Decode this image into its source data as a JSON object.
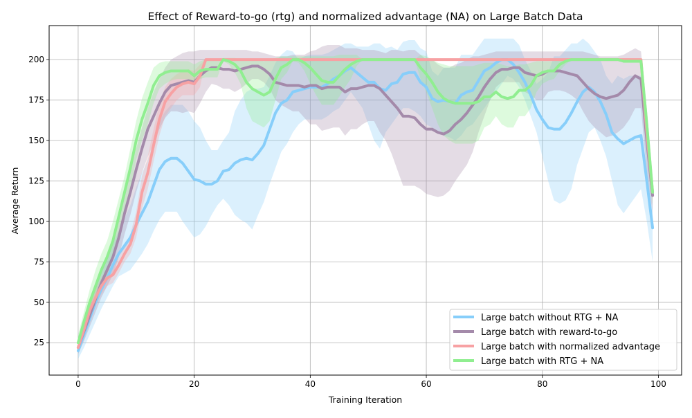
{
  "chart_data": {
    "type": "line",
    "title": "Effect of Reward-to-go (rtg) and normalized advantage (NA) on Large Batch Data",
    "xlabel": "Training Iteration",
    "ylabel": "Average Return",
    "xlim": [
      -5,
      104
    ],
    "ylim": [
      5,
      221
    ],
    "xticks": [
      0,
      20,
      40,
      60,
      80,
      100
    ],
    "yticks": [
      25,
      50,
      75,
      100,
      125,
      150,
      175,
      200
    ],
    "grid": true,
    "legend_position": "lower-right",
    "x_start": 0,
    "series": [
      {
        "name": "Large batch without RTG + NA",
        "color": "#87cefa",
        "values": [
          20,
          30,
          40,
          50,
          58,
          65,
          73,
          80,
          85,
          90,
          98,
          105,
          112,
          122,
          132,
          137,
          139,
          139,
          136,
          131,
          126,
          125,
          123,
          123,
          125,
          131,
          132,
          136,
          138,
          139,
          138,
          142,
          147,
          157,
          167,
          173,
          175,
          180,
          181,
          182,
          183,
          183,
          183,
          185,
          188,
          190,
          193,
          195,
          192,
          189,
          186,
          186,
          182,
          181,
          185,
          186,
          191,
          192,
          192,
          186,
          183,
          176,
          174,
          175,
          174,
          173,
          178,
          180,
          181,
          187,
          193,
          195,
          198,
          200,
          200,
          197,
          192,
          186,
          178,
          169,
          163,
          158,
          157,
          157,
          161,
          167,
          174,
          180,
          183,
          180,
          174,
          166,
          155,
          151,
          148,
          150,
          152,
          153,
          125,
          96
        ]
      },
      {
        "name": "Large batch with reward-to-go",
        "color": "#a48aaa",
        "values": [
          22,
          32,
          42,
          52,
          62,
          70,
          78,
          90,
          105,
          118,
          132,
          145,
          157,
          165,
          173,
          180,
          184,
          185,
          186,
          187,
          186,
          190,
          193,
          195,
          195,
          194,
          194,
          193,
          194,
          195,
          196,
          196,
          194,
          191,
          186,
          185,
          184,
          184,
          184,
          183,
          184,
          184,
          182,
          183,
          183,
          183,
          180,
          182,
          182,
          183,
          184,
          184,
          182,
          178,
          174,
          170,
          165,
          165,
          164,
          160,
          157,
          157,
          155,
          154,
          156,
          160,
          163,
          167,
          172,
          177,
          183,
          188,
          192,
          194,
          194,
          195,
          195,
          192,
          191,
          190,
          191,
          193,
          193,
          193,
          192,
          191,
          190,
          186,
          182,
          179,
          177,
          176,
          177,
          178,
          181,
          186,
          190,
          188,
          150,
          116
        ]
      },
      {
        "name": "Large batch with normalized advantage",
        "color": "#f7a1a3",
        "values": [
          22,
          33,
          45,
          53,
          60,
          65,
          67,
          73,
          80,
          86,
          98,
          118,
          130,
          147,
          163,
          174,
          179,
          183,
          185,
          186,
          185,
          190,
          200,
          200,
          200,
          200,
          200,
          200,
          200,
          200,
          200,
          200,
          200,
          200,
          200,
          200,
          200,
          200,
          200,
          200,
          200,
          200,
          200,
          200,
          200,
          200,
          200,
          200,
          200,
          200,
          200,
          200,
          200,
          200,
          200,
          200,
          200,
          200,
          200,
          200,
          200,
          200,
          200,
          200,
          200,
          200,
          200,
          200,
          200,
          200,
          200,
          200,
          200,
          200,
          200,
          200,
          200,
          200,
          200,
          200,
          200,
          200,
          200,
          200,
          200,
          200,
          200,
          200,
          200,
          200,
          200,
          200,
          200,
          200,
          200,
          200,
          200,
          200,
          155,
          118
        ]
      },
      {
        "name": "Large batch with RTG + NA",
        "color": "#90ee90",
        "values": [
          25,
          38,
          50,
          60,
          70,
          78,
          88,
          103,
          118,
          133,
          150,
          163,
          173,
          184,
          190,
          192,
          193,
          193,
          193,
          193,
          190,
          193,
          194,
          194,
          194,
          200,
          199,
          197,
          193,
          186,
          182,
          180,
          178,
          180,
          188,
          195,
          197,
          200,
          200,
          198,
          195,
          191,
          187,
          186,
          186,
          190,
          194,
          197,
          199,
          200,
          200,
          200,
          200,
          200,
          200,
          200,
          200,
          200,
          200,
          195,
          191,
          186,
          180,
          176,
          174,
          173,
          173,
          173,
          173,
          174,
          177,
          177,
          180,
          177,
          176,
          177,
          181,
          181,
          184,
          190,
          192,
          193,
          193,
          197,
          199,
          200,
          200,
          200,
          200,
          200,
          200,
          200,
          200,
          200,
          199,
          199,
          199,
          199,
          160,
          118
        ]
      }
    ],
    "bands": [
      {
        "series": "Large batch without RTG + NA",
        "color": "#87cefa",
        "lower": [
          15,
          22,
          30,
          38,
          46,
          53,
          60,
          66,
          68,
          70,
          75,
          80,
          86,
          94,
          101,
          106,
          106,
          106,
          100,
          95,
          90,
          92,
          97,
          104,
          110,
          114,
          110,
          104,
          101,
          99,
          95,
          104,
          112,
          123,
          133,
          143,
          148,
          155,
          160,
          163,
          163,
          163,
          163,
          165,
          168,
          170,
          175,
          180,
          175,
          170,
          160,
          150,
          145,
          155,
          160,
          165,
          170,
          170,
          168,
          165,
          160,
          158,
          155,
          153,
          152,
          150,
          153,
          158,
          160,
          165,
          170,
          175,
          180,
          185,
          190,
          188,
          183,
          175,
          165,
          155,
          140,
          125,
          113,
          111,
          113,
          120,
          135,
          145,
          155,
          158,
          150,
          140,
          125,
          110,
          105,
          110,
          115,
          120,
          100,
          75
        ],
        "upper": [
          25,
          38,
          50,
          62,
          70,
          77,
          86,
          94,
          102,
          110,
          121,
          130,
          138,
          150,
          162,
          168,
          172,
          172,
          172,
          168,
          162,
          158,
          150,
          144,
          144,
          150,
          155,
          168,
          175,
          180,
          182,
          182,
          183,
          190,
          198,
          203,
          206,
          205,
          200,
          202,
          203,
          203,
          203,
          204,
          206,
          208,
          210,
          210,
          208,
          208,
          208,
          210,
          210,
          207,
          208,
          206,
          211,
          212,
          212,
          207,
          205,
          193,
          190,
          195,
          195,
          195,
          203,
          203,
          203,
          208,
          213,
          213,
          213,
          213,
          213,
          213,
          209,
          200,
          193,
          185,
          188,
          192,
          202,
          202,
          206,
          210,
          210,
          213,
          210,
          205,
          200,
          190,
          185,
          190,
          188,
          190,
          190,
          190,
          160,
          125
        ]
      },
      {
        "series": "Large batch with reward-to-go",
        "color": "#a48aaa",
        "lower": [
          18,
          26,
          35,
          44,
          53,
          60,
          67,
          78,
          92,
          104,
          118,
          130,
          140,
          148,
          157,
          164,
          168,
          168,
          167,
          168,
          167,
          173,
          180,
          185,
          184,
          182,
          182,
          180,
          182,
          185,
          188,
          188,
          186,
          182,
          175,
          172,
          170,
          168,
          168,
          164,
          160,
          160,
          156,
          157,
          158,
          158,
          153,
          157,
          157,
          160,
          162,
          162,
          155,
          150,
          142,
          132,
          122,
          122,
          122,
          120,
          117,
          116,
          115,
          116,
          119,
          125,
          130,
          135,
          143,
          155,
          165,
          175,
          183,
          186,
          186,
          186,
          186,
          180,
          178,
          175,
          175,
          180,
          181,
          181,
          180,
          178,
          175,
          168,
          162,
          158,
          155,
          152,
          153,
          155,
          158,
          163,
          170,
          170,
          130,
          105
        ],
        "upper": [
          26,
          37,
          48,
          58,
          70,
          80,
          88,
          101,
          118,
          131,
          145,
          158,
          170,
          180,
          188,
          195,
          200,
          202,
          204,
          205,
          205,
          206,
          206,
          206,
          206,
          206,
          206,
          206,
          206,
          206,
          205,
          205,
          204,
          203,
          202,
          202,
          202,
          203,
          203,
          203,
          205,
          206,
          208,
          209,
          209,
          209,
          207,
          207,
          207,
          206,
          206,
          206,
          205,
          204,
          206,
          206,
          205,
          206,
          206,
          203,
          200,
          200,
          197,
          195,
          195,
          197,
          198,
          200,
          202,
          202,
          203,
          204,
          205,
          205,
          205,
          205,
          205,
          205,
          205,
          205,
          205,
          205,
          205,
          205,
          205,
          205,
          205,
          205,
          204,
          203,
          202,
          202,
          202,
          202,
          203,
          205,
          207,
          205,
          170,
          127
        ]
      },
      {
        "series": "Large batch with normalized advantage",
        "color": "#f7a1a3",
        "lower": [
          19,
          29,
          40,
          48,
          55,
          60,
          62,
          68,
          75,
          80,
          90,
          108,
          120,
          137,
          153,
          165,
          170,
          175,
          178,
          178,
          178,
          183,
          200,
          200,
          200,
          200,
          200,
          200,
          200,
          200,
          200,
          200,
          200,
          200,
          200,
          200,
          200,
          200,
          200,
          200,
          200,
          200,
          200,
          200,
          200,
          200,
          200,
          200,
          200,
          200,
          200,
          200,
          200,
          200,
          200,
          200,
          200,
          200,
          200,
          200,
          200,
          200,
          200,
          200,
          200,
          200,
          200,
          200,
          200,
          200,
          200,
          200,
          200,
          200,
          200,
          200,
          200,
          200,
          200,
          200,
          200,
          200,
          200,
          200,
          200,
          200,
          200,
          200,
          200,
          200,
          200,
          200,
          200,
          200,
          200,
          200,
          200,
          200,
          150,
          110
        ],
        "upper": [
          25,
          37,
          50,
          58,
          65,
          70,
          72,
          78,
          85,
          92,
          106,
          128,
          140,
          157,
          173,
          183,
          188,
          191,
          193,
          194,
          193,
          197,
          200,
          200,
          200,
          200,
          200,
          200,
          200,
          200,
          200,
          200,
          200,
          200,
          200,
          200,
          200,
          200,
          200,
          200,
          200,
          200,
          200,
          200,
          200,
          200,
          200,
          200,
          200,
          200,
          200,
          200,
          200,
          200,
          200,
          200,
          200,
          200,
          200,
          200,
          200,
          200,
          200,
          200,
          200,
          200,
          200,
          200,
          200,
          200,
          200,
          200,
          200,
          200,
          200,
          200,
          200,
          200,
          200,
          200,
          200,
          200,
          200,
          200,
          200,
          200,
          200,
          200,
          200,
          200,
          200,
          200,
          200,
          200,
          200,
          200,
          200,
          200,
          160,
          125
        ]
      },
      {
        "series": "Large batch with RTG + NA",
        "color": "#90ee90",
        "lower": [
          21,
          32,
          43,
          52,
          60,
          67,
          77,
          92,
          106,
          120,
          138,
          150,
          160,
          173,
          182,
          185,
          187,
          188,
          188,
          188,
          184,
          188,
          189,
          189,
          189,
          199,
          197,
          192,
          185,
          170,
          162,
          160,
          158,
          162,
          175,
          188,
          192,
          199,
          198,
          193,
          185,
          178,
          172,
          172,
          172,
          177,
          183,
          188,
          196,
          200,
          200,
          200,
          200,
          200,
          200,
          200,
          200,
          200,
          200,
          188,
          180,
          170,
          160,
          153,
          150,
          148,
          148,
          148,
          148,
          150,
          158,
          160,
          165,
          160,
          158,
          158,
          165,
          165,
          170,
          180,
          185,
          187,
          188,
          193,
          197,
          200,
          200,
          200,
          200,
          200,
          200,
          200,
          200,
          200,
          198,
          198,
          198,
          198,
          150,
          110
        ],
        "upper": [
          30,
          44,
          58,
          70,
          80,
          88,
          100,
          114,
          128,
          145,
          162,
          176,
          186,
          195,
          198,
          199,
          199,
          199,
          199,
          199,
          197,
          199,
          200,
          200,
          200,
          201,
          201,
          201,
          200,
          200,
          200,
          200,
          199,
          200,
          201,
          202,
          202,
          202,
          202,
          202,
          202,
          202,
          202,
          202,
          202,
          203,
          203,
          203,
          203,
          200,
          200,
          200,
          200,
          200,
          200,
          200,
          200,
          200,
          200,
          203,
          202,
          200,
          198,
          197,
          196,
          196,
          196,
          196,
          196,
          197,
          198,
          198,
          198,
          197,
          196,
          196,
          197,
          197,
          198,
          199,
          199,
          199,
          199,
          200,
          200,
          200,
          200,
          200,
          200,
          200,
          200,
          200,
          200,
          200,
          200,
          200,
          200,
          200,
          170,
          127
        ]
      }
    ]
  }
}
